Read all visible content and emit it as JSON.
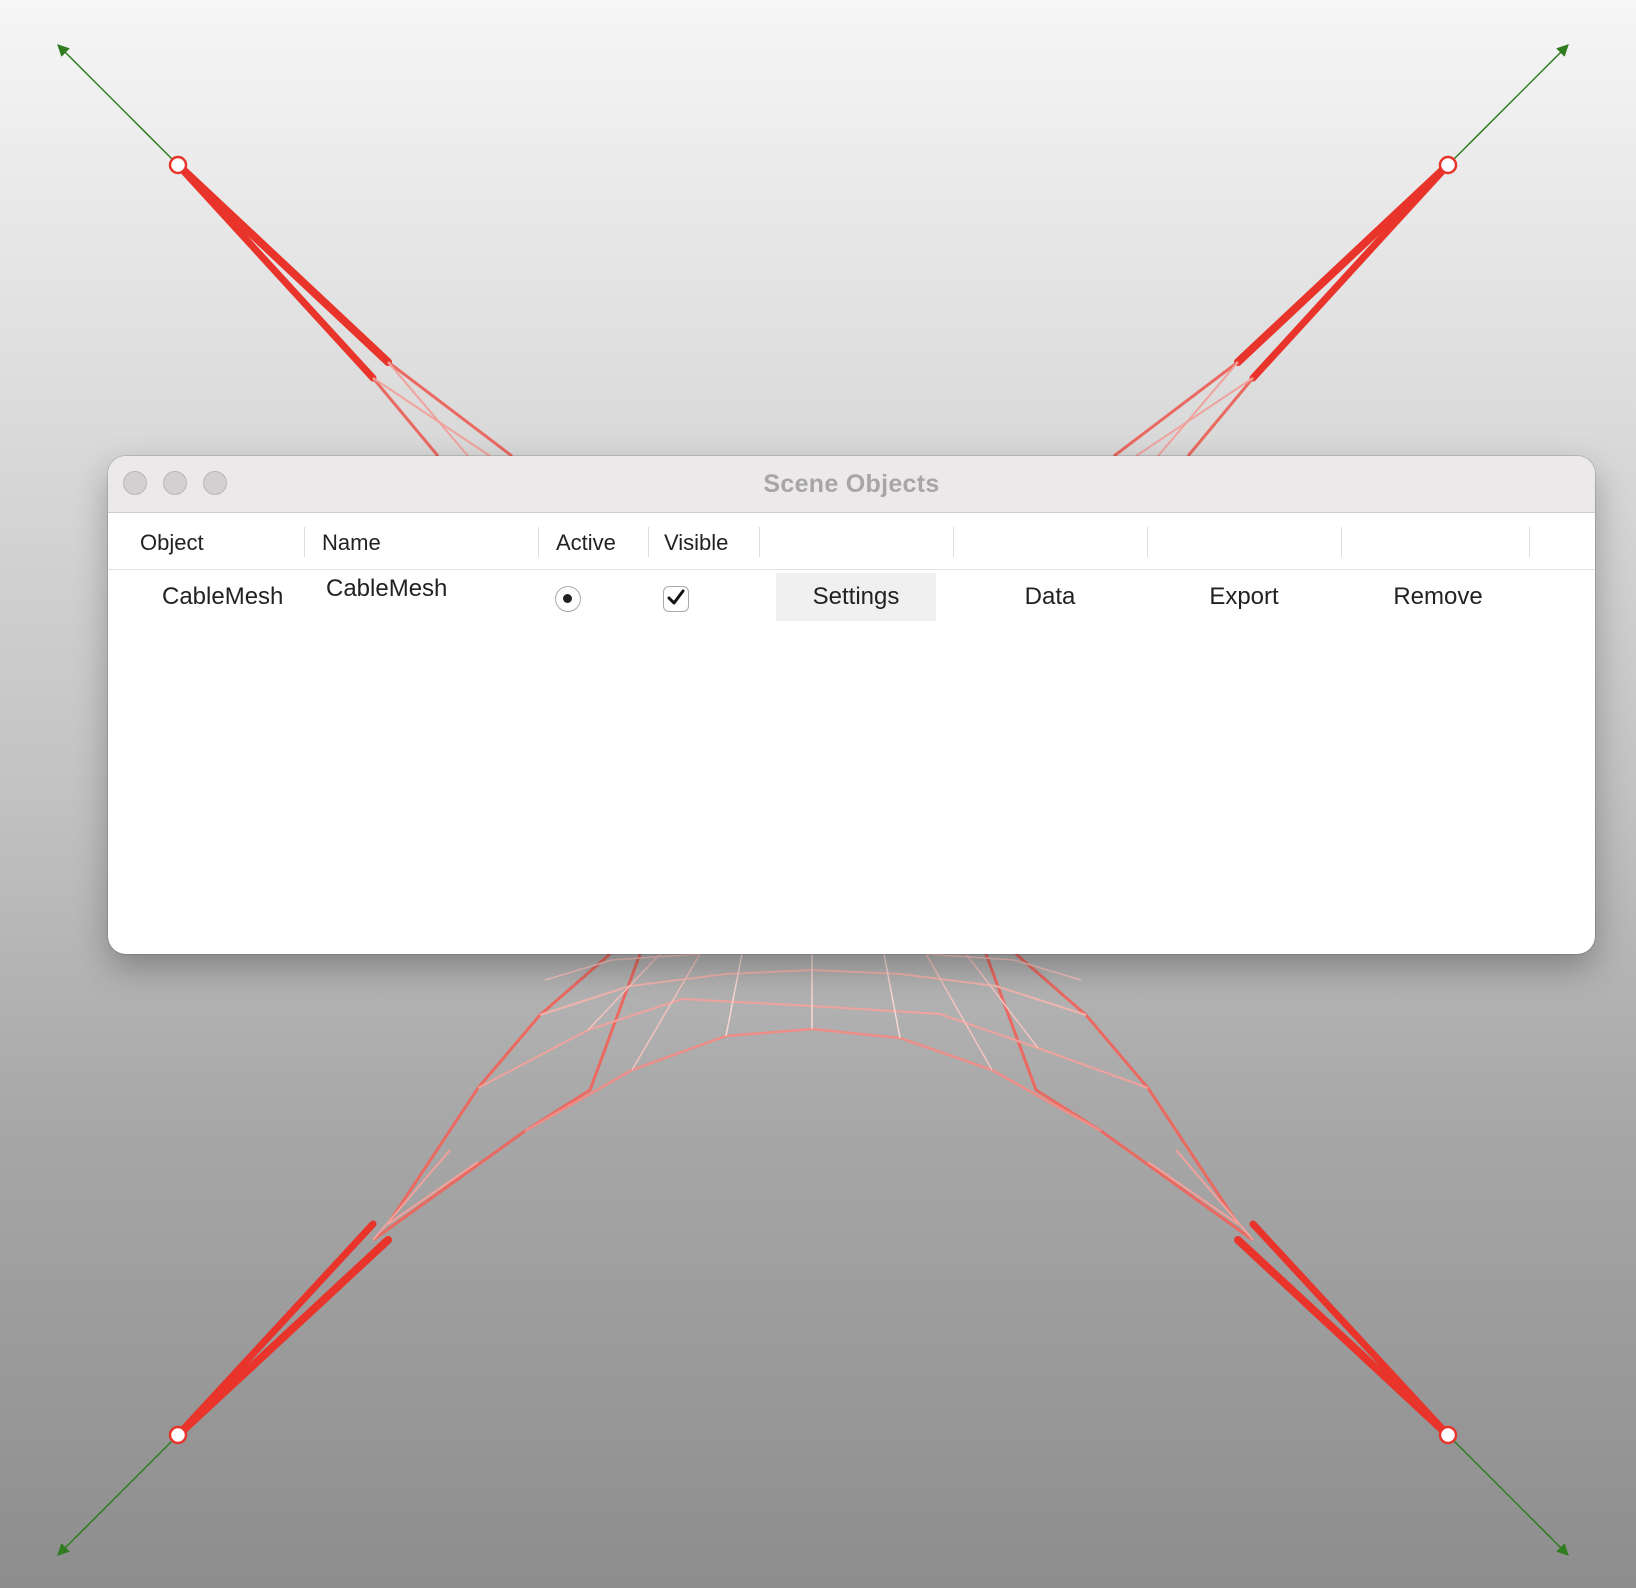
{
  "window": {
    "title": "Scene Objects"
  },
  "table": {
    "headers": [
      "Object",
      "Name",
      "Active",
      "Visible"
    ],
    "rows": [
      {
        "object": "CableMesh",
        "name": "CableMesh",
        "active": true,
        "visible": true,
        "actions": [
          "Settings",
          "Data",
          "Export",
          "Remove"
        ]
      }
    ]
  },
  "colors": {
    "cable_force": "#e8342a",
    "mesh_edge": "#ee9a95",
    "reaction_arrow": "#2f7d1f",
    "window_title": "#a7a5a6"
  }
}
